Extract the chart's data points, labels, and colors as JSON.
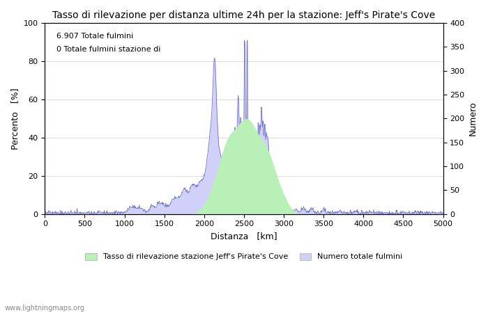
{
  "title": "Tasso di rilevazione per distanza ultime 24h per la stazione: Jeff's Pirate's Cove",
  "xlabel": "Distanza   [km]",
  "ylabel_left": "Percento   [%]",
  "ylabel_right": "Numero",
  "xlim": [
    0,
    5000
  ],
  "ylim_left": [
    0,
    100
  ],
  "ylim_right": [
    0,
    400
  ],
  "xticks": [
    0,
    500,
    1000,
    1500,
    2000,
    2500,
    3000,
    3500,
    4000,
    4500,
    5000
  ],
  "yticks_left": [
    0,
    20,
    40,
    60,
    80,
    100
  ],
  "yticks_right": [
    0,
    50,
    100,
    150,
    200,
    250,
    300,
    350,
    400
  ],
  "annotation_line1": "6.907 Totale fulmini",
  "annotation_line2": "0 Totale fulmini stazione di",
  "legend_label1": "Tasso di rilevazione stazione Jeff's Pirate's Cove",
  "legend_label2": "Numero totale fulmini",
  "fill_color_green": "#b8f0b8",
  "fill_color_blue": "#d0d0f8",
  "line_color": "#7070cc",
  "watermark": "www.lightningmaps.org",
  "background_color": "#ffffff",
  "grid_color": "#cccccc",
  "title_fontsize": 10,
  "axis_fontsize": 9,
  "tick_fontsize": 8,
  "seed": 1234
}
